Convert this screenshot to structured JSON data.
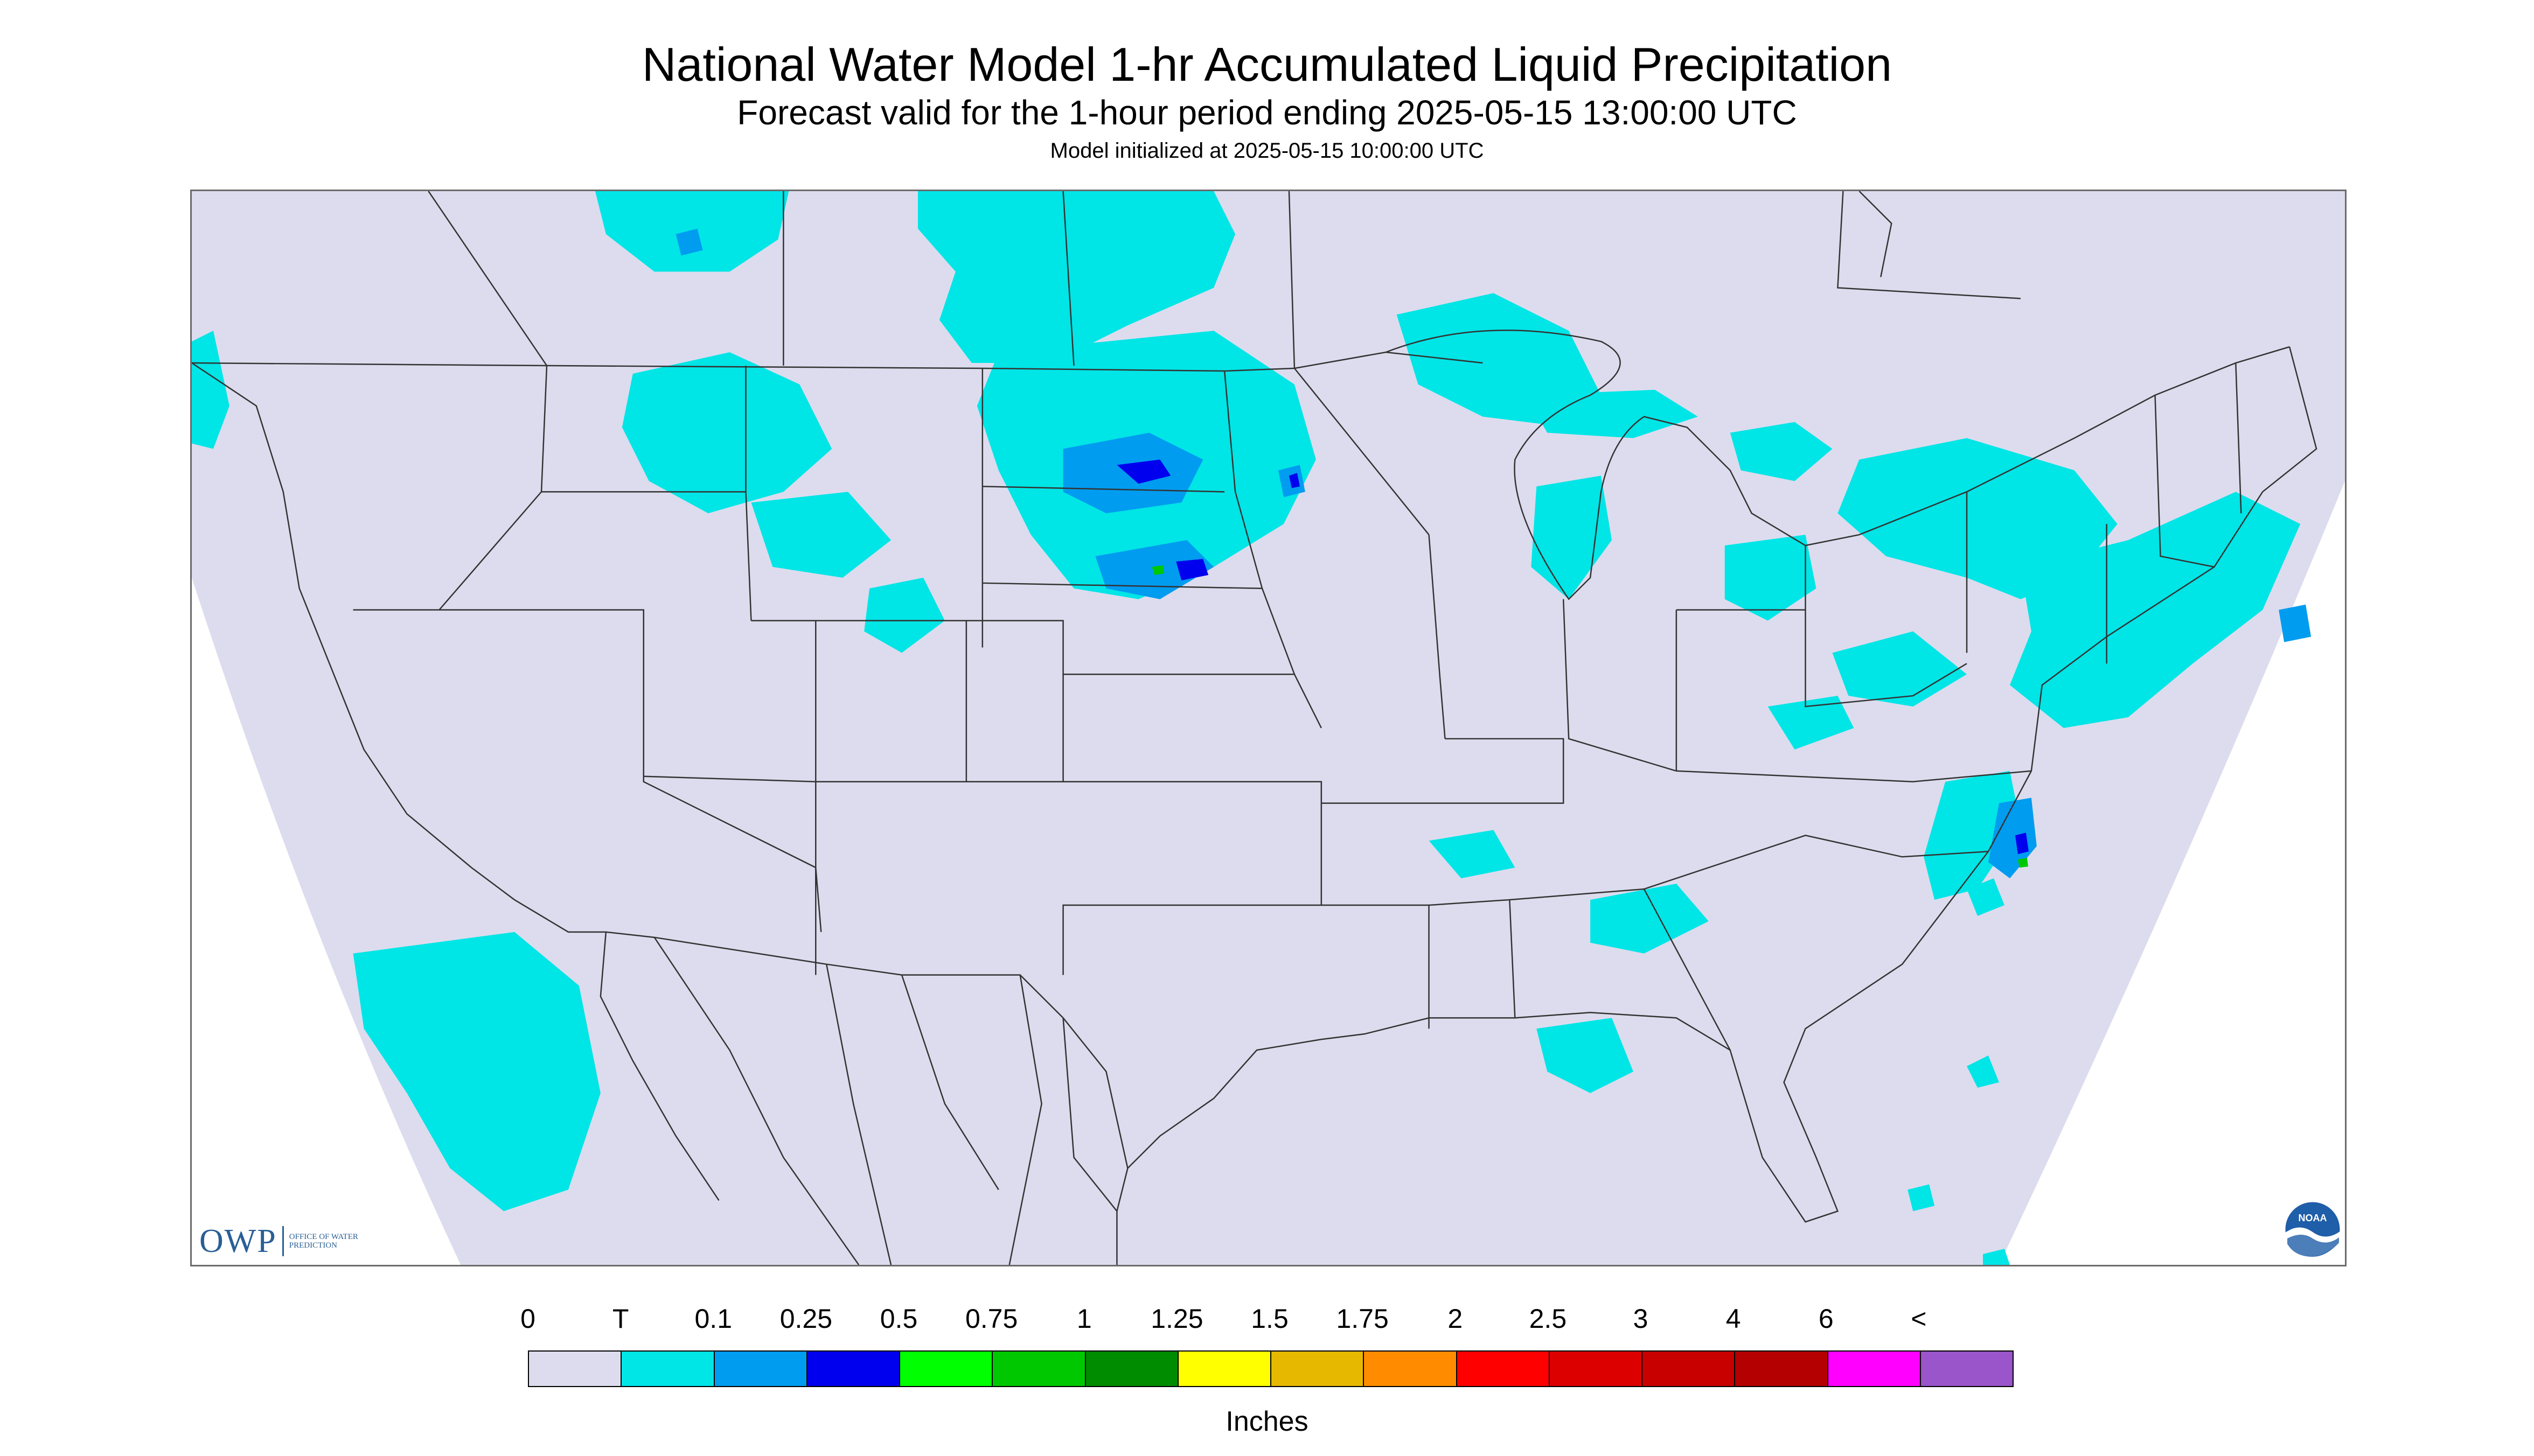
{
  "header": {
    "title": "National Water Model 1-hr Accumulated Liquid Precipitation",
    "subtitle": "Forecast valid for the 1-hour period ending 2025-05-15 13:00:00 UTC",
    "init": "Model initialized at 2025-05-15 10:00:00 UTC"
  },
  "logos": {
    "owp_letters": "OWP",
    "owp_office": "OFFICE OF WATER PREDICTION",
    "noaa_text": "NOAA"
  },
  "legend": {
    "labels": [
      "0",
      "T",
      "0.1",
      "0.25",
      "0.5",
      "0.75",
      "1",
      "1.25",
      "1.5",
      "1.75",
      "2",
      "2.5",
      "3",
      "4",
      "6",
      "<"
    ],
    "colors": [
      "#dcdcee",
      "#00e5e6",
      "#009cf0",
      "#0000ee",
      "#00ff00",
      "#00c800",
      "#008c00",
      "#ffff00",
      "#e6b800",
      "#ff8c00",
      "#ff0000",
      "#dc0000",
      "#c80000",
      "#b40000",
      "#ff00ff",
      "#9955c9"
    ],
    "units": "Inches"
  },
  "map": {
    "domain_fill": "#dcdcee",
    "precip_light": "#00e5e6",
    "precip_medium": "#009cf0",
    "precip_heavy": "#0000ee",
    "precip_green": "#00c800",
    "boundary_color": "#333333"
  }
}
